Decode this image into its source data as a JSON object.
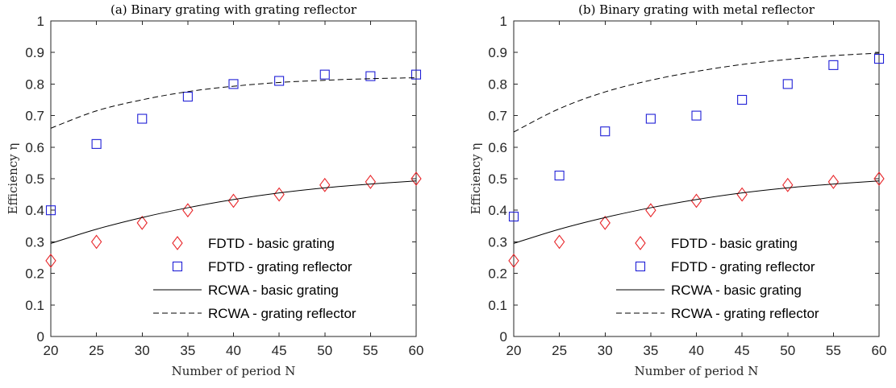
{
  "chart_data": [
    {
      "type": "scatter",
      "title": "(a) Binary grating with grating reflector",
      "xlabel": "Number of period N",
      "ylabel": "Efficiency η",
      "xlim": [
        20,
        60
      ],
      "ylim": [
        0,
        1
      ],
      "xticks": [
        "20",
        "25",
        "30",
        "35",
        "40",
        "45",
        "50",
        "55",
        "60"
      ],
      "yticks": [
        "0",
        "0.1",
        "0.2",
        "0.3",
        "0.4",
        "0.5",
        "0.6",
        "0.7",
        "0.8",
        "0.9",
        "1"
      ],
      "grid": false,
      "legend_position": "bottom-right",
      "series": [
        {
          "name": "FDTD - basic grating",
          "kind": "marker",
          "marker": "diamond",
          "color": "#e8262a",
          "x": [
            20,
            25,
            30,
            35,
            40,
            45,
            50,
            55,
            60
          ],
          "y": [
            0.24,
            0.3,
            0.36,
            0.4,
            0.43,
            0.45,
            0.48,
            0.49,
            0.5
          ]
        },
        {
          "name": "FDTD - grating reflector",
          "kind": "marker",
          "marker": "square",
          "color": "#1f1fd6",
          "x": [
            20,
            25,
            30,
            35,
            40,
            45,
            50,
            55,
            60
          ],
          "y": [
            0.4,
            0.61,
            0.69,
            0.76,
            0.8,
            0.81,
            0.83,
            0.825,
            0.83
          ]
        },
        {
          "name": "RCWA - basic grating",
          "kind": "line",
          "dash": "solid",
          "color": "#000000",
          "x": [
            20,
            25,
            30,
            35,
            40,
            45,
            50,
            55,
            60
          ],
          "y": [
            0.295,
            0.34,
            0.377,
            0.408,
            0.434,
            0.455,
            0.471,
            0.483,
            0.493
          ]
        },
        {
          "name": "RCWA - grating reflector",
          "kind": "line",
          "dash": "dashed",
          "color": "#000000",
          "x": [
            20,
            25,
            30,
            35,
            40,
            45,
            50,
            55,
            60
          ],
          "y": [
            0.66,
            0.715,
            0.75,
            0.776,
            0.793,
            0.805,
            0.812,
            0.817,
            0.82
          ]
        }
      ]
    },
    {
      "type": "scatter",
      "title": "(b) Binary grating with metal reflector",
      "xlabel": "Number of period N",
      "ylabel": "Efficiency η",
      "xlim": [
        20,
        60
      ],
      "ylim": [
        0,
        1
      ],
      "xticks": [
        "20",
        "25",
        "30",
        "35",
        "40",
        "45",
        "50",
        "55",
        "60"
      ],
      "yticks": [
        "0",
        "0.1",
        "0.2",
        "0.3",
        "0.4",
        "0.5",
        "0.6",
        "0.7",
        "0.8",
        "0.9",
        "1"
      ],
      "grid": false,
      "legend_position": "bottom-right",
      "series": [
        {
          "name": "FDTD - basic grating",
          "kind": "marker",
          "marker": "diamond",
          "color": "#e8262a",
          "x": [
            20,
            25,
            30,
            35,
            40,
            45,
            50,
            55,
            60
          ],
          "y": [
            0.24,
            0.3,
            0.36,
            0.4,
            0.43,
            0.45,
            0.48,
            0.49,
            0.5
          ]
        },
        {
          "name": "FDTD - grating reflector",
          "kind": "marker",
          "marker": "square",
          "color": "#1f1fd6",
          "x": [
            20,
            25,
            30,
            35,
            40,
            45,
            50,
            55,
            60
          ],
          "y": [
            0.38,
            0.51,
            0.65,
            0.69,
            0.7,
            0.75,
            0.8,
            0.86,
            0.88
          ]
        },
        {
          "name": "RCWA - basic grating",
          "kind": "line",
          "dash": "solid",
          "color": "#000000",
          "x": [
            20,
            25,
            30,
            35,
            40,
            45,
            50,
            55,
            60
          ],
          "y": [
            0.295,
            0.34,
            0.377,
            0.408,
            0.434,
            0.455,
            0.471,
            0.483,
            0.493
          ]
        },
        {
          "name": "RCWA - grating reflector",
          "kind": "line",
          "dash": "dashed",
          "color": "#000000",
          "x": [
            20,
            25,
            30,
            35,
            40,
            45,
            50,
            55,
            60
          ],
          "y": [
            0.648,
            0.722,
            0.775,
            0.812,
            0.84,
            0.862,
            0.878,
            0.89,
            0.898
          ]
        }
      ]
    }
  ]
}
